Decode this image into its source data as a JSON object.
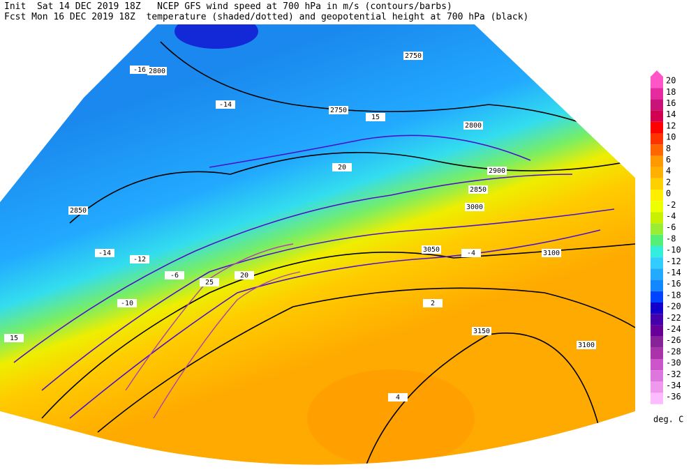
{
  "header": {
    "line1": "Init  Sat 14 DEC 2019 18Z   NCEP GFS wind speed at 700 hPa in m/s (contours/barbs)",
    "line2": "Fcst Mon 16 DEC 2019 18Z  temperature (shaded/dotted) and geopotential height at 700 hPa (black)"
  },
  "colorbar": {
    "unit": "deg. C",
    "levels": [
      {
        "value": 20,
        "color": "#ff55c8"
      },
      {
        "value": 18,
        "color": "#e62aa0"
      },
      {
        "value": 16,
        "color": "#c81478"
      },
      {
        "value": 14,
        "color": "#d20050"
      },
      {
        "value": 12,
        "color": "#ff0000"
      },
      {
        "value": 10,
        "color": "#ff3300"
      },
      {
        "value": 8,
        "color": "#ff6600"
      },
      {
        "value": 6,
        "color": "#ff9900"
      },
      {
        "value": 4,
        "color": "#ffb000"
      },
      {
        "value": 2,
        "color": "#ffd000"
      },
      {
        "value": 0,
        "color": "#ffee00"
      },
      {
        "value": -2,
        "color": "#eeff00"
      },
      {
        "value": -4,
        "color": "#c8f000"
      },
      {
        "value": -6,
        "color": "#99ee33"
      },
      {
        "value": -8,
        "color": "#55ee77"
      },
      {
        "value": -10,
        "color": "#33eedd"
      },
      {
        "value": -12,
        "color": "#33ccff"
      },
      {
        "value": -14,
        "color": "#22aaff"
      },
      {
        "value": -16,
        "color": "#1188ff"
      },
      {
        "value": -18,
        "color": "#0044ff"
      },
      {
        "value": -20,
        "color": "#1100cc"
      },
      {
        "value": -22,
        "color": "#4400aa"
      },
      {
        "value": -24,
        "color": "#660099"
      },
      {
        "value": -26,
        "color": "#882299"
      },
      {
        "value": -28,
        "color": "#aa33aa"
      },
      {
        "value": -30,
        "color": "#cc55cc"
      },
      {
        "value": -32,
        "color": "#dd77dd"
      },
      {
        "value": -34,
        "color": "#ee99ee"
      },
      {
        "value": -36,
        "color": "#ffbbff"
      }
    ]
  },
  "map_labels": [
    "2750",
    "2750",
    "2800",
    "2800",
    "2850",
    "2850",
    "2900",
    "3000",
    "3050",
    "3100",
    "3150",
    "3100",
    "-16",
    "-14",
    "-14",
    "-12",
    "-10",
    "-6",
    "-4",
    "2",
    "4",
    "15",
    "20",
    "25",
    "20",
    "15"
  ]
}
